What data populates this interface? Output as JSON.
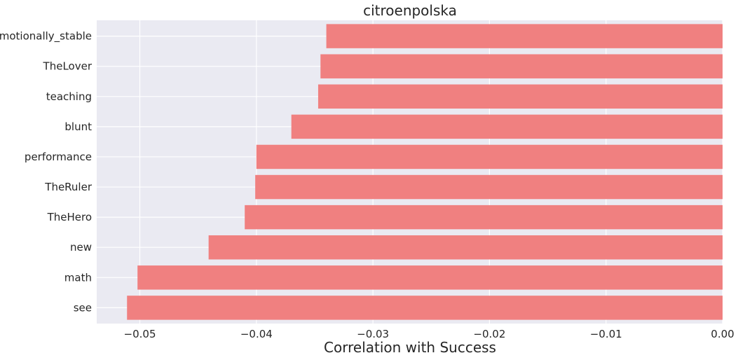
{
  "chart_data": {
    "type": "bar",
    "orientation": "horizontal",
    "title": "citroenpolska",
    "xlabel": "Correlation with Success",
    "ylabel": "",
    "categories": [
      "emotionally_stable",
      "TheLover",
      "teaching",
      "blunt",
      "performance",
      "TheRuler",
      "TheHero",
      "new",
      "math",
      "see"
    ],
    "values": [
      -0.034,
      -0.0345,
      -0.0347,
      -0.037,
      -0.04,
      -0.0401,
      -0.041,
      -0.0441,
      -0.0502,
      -0.0511
    ],
    "xlim": [
      -0.0537,
      0.0
    ],
    "xticks": [
      -0.05,
      -0.04,
      -0.03,
      -0.02,
      -0.01,
      0.0
    ],
    "xtick_labels": [
      "−0.05",
      "−0.04",
      "−0.03",
      "−0.02",
      "−0.01",
      "0.00"
    ],
    "grid": true,
    "colors": {
      "bar": "#f08080",
      "background": "#eaeaf2",
      "grid": "#ffffff"
    }
  }
}
